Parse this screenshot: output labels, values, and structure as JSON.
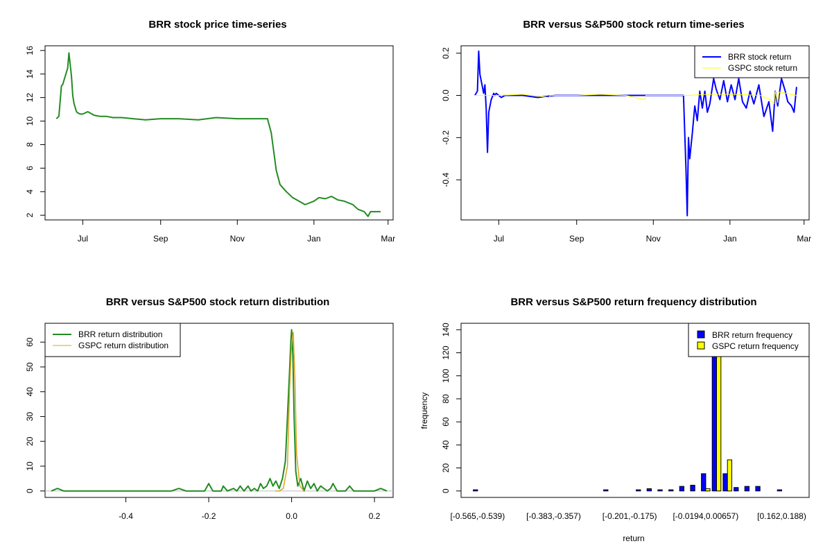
{
  "chart_data": [
    {
      "type": "line",
      "title": "BRR stock price time-series",
      "x_ticks": [
        "Jul",
        "Sep",
        "Nov",
        "Jan",
        "Mar"
      ],
      "x_tick_dates": [
        "2017-07-01",
        "2017-09-01",
        "2017-11-01",
        "2018-01-01",
        "2018-03-01"
      ],
      "xlim": [
        "2017-06-01",
        "2018-03-05"
      ],
      "ylim": [
        1.6,
        16.4
      ],
      "y_ticks": [
        2,
        4,
        6,
        8,
        10,
        12,
        14,
        16
      ],
      "series": [
        {
          "color": "#228b22",
          "x": [
            "2017-06-10",
            "2017-06-12",
            "2017-06-14",
            "2017-06-15",
            "2017-06-19",
            "2017-06-20",
            "2017-06-22",
            "2017-06-23",
            "2017-06-24",
            "2017-06-26",
            "2017-06-27",
            "2017-06-29",
            "2017-07-01",
            "2017-07-05",
            "2017-07-10",
            "2017-07-15",
            "2017-07-20",
            "2017-07-25",
            "2017-08-01",
            "2017-08-10",
            "2017-08-20",
            "2017-09-01",
            "2017-09-15",
            "2017-10-01",
            "2017-10-15",
            "2017-11-01",
            "2017-11-15",
            "2017-11-25",
            "2017-11-28",
            "2017-12-02",
            "2017-12-05",
            "2017-12-10",
            "2017-12-15",
            "2017-12-20",
            "2017-12-25",
            "2018-01-01",
            "2018-01-05",
            "2018-01-10",
            "2018-01-15",
            "2018-01-20",
            "2018-01-25",
            "2018-02-01",
            "2018-02-05",
            "2018-02-10",
            "2018-02-13",
            "2018-02-15",
            "2018-02-18",
            "2018-02-23"
          ],
          "y": [
            10.2,
            10.4,
            13.0,
            13.1,
            14.5,
            15.8,
            13.8,
            12.2,
            11.5,
            10.8,
            10.7,
            10.6,
            10.6,
            10.8,
            10.5,
            10.4,
            10.4,
            10.3,
            10.3,
            10.2,
            10.1,
            10.2,
            10.2,
            10.1,
            10.3,
            10.2,
            10.2,
            10.2,
            9.0,
            5.8,
            4.6,
            4.0,
            3.5,
            3.2,
            2.9,
            3.2,
            3.5,
            3.4,
            3.6,
            3.3,
            3.2,
            2.9,
            2.5,
            2.3,
            1.9,
            2.3,
            2.3,
            2.3
          ]
        }
      ]
    },
    {
      "type": "line",
      "title": "BRR versus S&P500 stock return time-series",
      "x_ticks": [
        "Jul",
        "Sep",
        "Nov",
        "Jan",
        "Mar"
      ],
      "x_tick_dates": [
        "2017-07-01",
        "2017-09-01",
        "2017-11-01",
        "2018-01-01",
        "2018-03-01"
      ],
      "xlim": [
        "2017-06-01",
        "2018-03-05"
      ],
      "ylim": [
        -0.59,
        0.235
      ],
      "y_ticks": [
        -0.4,
        -0.2,
        0.0,
        0.2
      ],
      "legend": "top-right",
      "series": [
        {
          "name": "BRR stock return",
          "color": "#0000ff",
          "x": [
            "2017-06-12",
            "2017-06-14",
            "2017-06-15",
            "2017-06-16",
            "2017-06-19",
            "2017-06-20",
            "2017-06-21",
            "2017-06-22",
            "2017-06-23",
            "2017-06-25",
            "2017-06-27",
            "2017-06-28",
            "2017-06-29",
            "2017-07-01",
            "2017-07-03",
            "2017-07-06",
            "2017-07-10",
            "2017-07-20",
            "2017-08-01",
            "2017-08-15",
            "2017-09-01",
            "2017-09-20",
            "2017-10-10",
            "2017-10-30",
            "2017-11-15",
            "2017-11-25",
            "2017-11-27",
            "2017-11-28",
            "2017-11-29",
            "2017-11-30",
            "2017-12-02",
            "2017-12-04",
            "2017-12-06",
            "2017-12-08",
            "2017-12-10",
            "2017-12-12",
            "2017-12-14",
            "2017-12-16",
            "2017-12-19",
            "2017-12-21",
            "2017-12-24",
            "2017-12-27",
            "2017-12-30",
            "2018-01-02",
            "2018-01-05",
            "2018-01-08",
            "2018-01-11",
            "2018-01-14",
            "2018-01-17",
            "2018-01-20",
            "2018-01-24",
            "2018-01-28",
            "2018-02-01",
            "2018-02-04",
            "2018-02-06",
            "2018-02-08",
            "2018-02-11",
            "2018-02-14",
            "2018-02-16",
            "2018-02-19",
            "2018-02-21",
            "2018-02-23"
          ],
          "y": [
            0.0,
            0.02,
            0.21,
            0.1,
            0.01,
            0.05,
            -0.06,
            -0.27,
            -0.08,
            -0.02,
            0.01,
            0.0,
            0.01,
            0.0,
            -0.01,
            0.0,
            0.0,
            0.0,
            -0.01,
            0.0,
            0.0,
            0.0,
            0.0,
            0.0,
            0.0,
            0.0,
            -0.35,
            -0.57,
            -0.2,
            -0.3,
            -0.18,
            -0.05,
            -0.12,
            0.02,
            -0.06,
            0.02,
            -0.08,
            -0.04,
            0.08,
            0.03,
            -0.02,
            0.07,
            -0.03,
            0.05,
            -0.02,
            0.08,
            -0.03,
            -0.06,
            0.02,
            -0.04,
            0.05,
            -0.1,
            -0.03,
            -0.17,
            0.02,
            -0.05,
            0.08,
            0.02,
            -0.03,
            -0.05,
            -0.08,
            0.04
          ]
        },
        {
          "name": "GSPC stock return",
          "color": "#ffff00",
          "x": [
            "2017-06-12",
            "2017-07-01",
            "2017-07-20",
            "2017-08-10",
            "2017-08-11",
            "2017-09-01",
            "2017-09-20",
            "2017-10-10",
            "2017-10-25",
            "2017-10-26",
            "2017-11-10",
            "2017-11-28",
            "2017-12-15",
            "2018-01-05",
            "2018-01-25",
            "2018-02-02",
            "2018-02-05",
            "2018-02-06",
            "2018-02-08",
            "2018-02-09",
            "2018-02-15",
            "2018-02-23"
          ],
          "y": [
            0.0,
            0.0,
            0.005,
            -0.01,
            0.0,
            0.0,
            0.005,
            0.0,
            -0.02,
            0.0,
            0.0,
            0.0,
            0.005,
            0.005,
            0.0,
            -0.02,
            -0.04,
            0.02,
            -0.035,
            0.015,
            0.01,
            0.0
          ]
        }
      ]
    },
    {
      "type": "line",
      "title": "BRR versus S&P500 stock return distribution",
      "xlim": [
        -0.595,
        0.245
      ],
      "ylim": [
        -2.6,
        67.6
      ],
      "x_ticks": [
        -0.4,
        -0.2,
        0.0,
        0.2
      ],
      "y_ticks": [
        0,
        10,
        20,
        30,
        40,
        50,
        60
      ],
      "legend": "top-left",
      "series": [
        {
          "name": "BRR return distribution",
          "color": "#228b22",
          "x": [
            -0.58,
            -0.565,
            -0.55,
            -0.29,
            -0.272,
            -0.255,
            -0.21,
            -0.2,
            -0.19,
            -0.17,
            -0.165,
            -0.155,
            -0.14,
            -0.132,
            -0.124,
            -0.115,
            -0.105,
            -0.098,
            -0.09,
            -0.082,
            -0.075,
            -0.068,
            -0.06,
            -0.052,
            -0.045,
            -0.038,
            -0.03,
            -0.022,
            -0.015,
            -0.01,
            -0.005,
            -0.002,
            0.0,
            0.003,
            0.006,
            0.01,
            0.015,
            0.022,
            0.03,
            0.038,
            0.046,
            0.054,
            0.062,
            0.07,
            0.078,
            0.086,
            0.094,
            0.1,
            0.11,
            0.13,
            0.14,
            0.15,
            0.2,
            0.215,
            0.23
          ],
          "y": [
            0,
            1,
            0,
            0,
            1,
            0,
            0,
            3,
            0,
            0,
            2,
            0,
            1,
            0,
            2,
            0,
            2,
            0,
            1,
            0,
            3,
            1,
            2,
            5,
            2,
            4,
            1,
            5,
            12,
            30,
            48,
            60,
            65,
            55,
            30,
            8,
            2,
            5,
            0,
            4,
            1,
            3,
            0,
            2,
            1,
            0,
            1,
            3,
            0,
            0,
            2,
            0,
            0,
            1,
            0
          ]
        },
        {
          "name": "GSPC return distribution",
          "color": "#daa520",
          "x": [
            -0.04,
            -0.03,
            -0.02,
            -0.01,
            -0.005,
            0.0,
            0.004,
            0.008,
            0.012,
            0.02,
            0.03
          ],
          "y": [
            0,
            0,
            1,
            10,
            40,
            60,
            64,
            45,
            15,
            2,
            0
          ]
        }
      ]
    },
    {
      "type": "bar",
      "title": "BRR versus S&P500 return frequency distribution",
      "xlabel": "return",
      "ylabel": "frequency",
      "ylim": [
        -5.6,
        145.6
      ],
      "y_ticks": [
        0,
        20,
        40,
        60,
        80,
        100,
        120,
        140
      ],
      "x_tick_labels": [
        "[-0.565,-0.539)",
        "[-0.383,-0.357)",
        "[-0.201,-0.175)",
        "[-0.0194,0.00657)",
        "[0.162,0.188)"
      ],
      "x_tick_bins": [
        0,
        7,
        14,
        21,
        28
      ],
      "legend": "top-right",
      "series": [
        {
          "name": "BRR return frequency",
          "color": "#0000ff",
          "values": [
            1,
            0,
            0,
            0,
            0,
            0,
            0,
            0,
            0,
            0,
            0,
            0,
            1,
            0,
            0,
            1,
            2,
            1,
            1,
            4,
            5,
            15,
            118,
            15,
            3,
            4,
            4,
            0,
            1,
            0
          ]
        },
        {
          "name": "GSPC return frequency",
          "color": "#ffff00",
          "values": [
            0,
            0,
            0,
            0,
            0,
            0,
            0,
            0,
            0,
            0,
            0,
            0,
            0,
            0,
            0,
            0,
            0,
            0,
            0,
            0,
            0,
            2,
            119,
            27,
            0,
            0,
            0,
            0,
            0,
            0
          ]
        }
      ]
    }
  ]
}
